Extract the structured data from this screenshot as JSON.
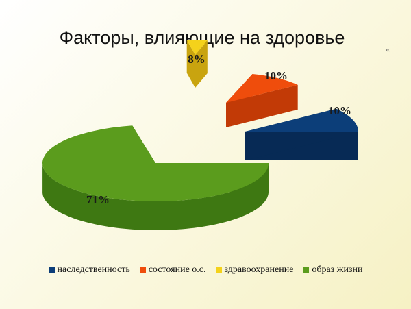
{
  "chart_data": {
    "type": "pie",
    "title": "Факторы, влияющие на здоровье",
    "categories": [
      "наследственность",
      "состояние о.с.",
      "здравоохранение",
      "образ жизни"
    ],
    "values": [
      10,
      10,
      8,
      71
    ],
    "labels": [
      "10%",
      "10%",
      "8%",
      "71%"
    ],
    "colors": [
      "#0c3e79",
      "#ef4d0c",
      "#f4d21b",
      "#5b9c1d"
    ],
    "side_colors": [
      "#072a55",
      "#c23a06",
      "#c9a40f",
      "#3e7812"
    ],
    "legend_position": "bottom",
    "style": "3d-exploded"
  },
  "corner_mark": "«"
}
